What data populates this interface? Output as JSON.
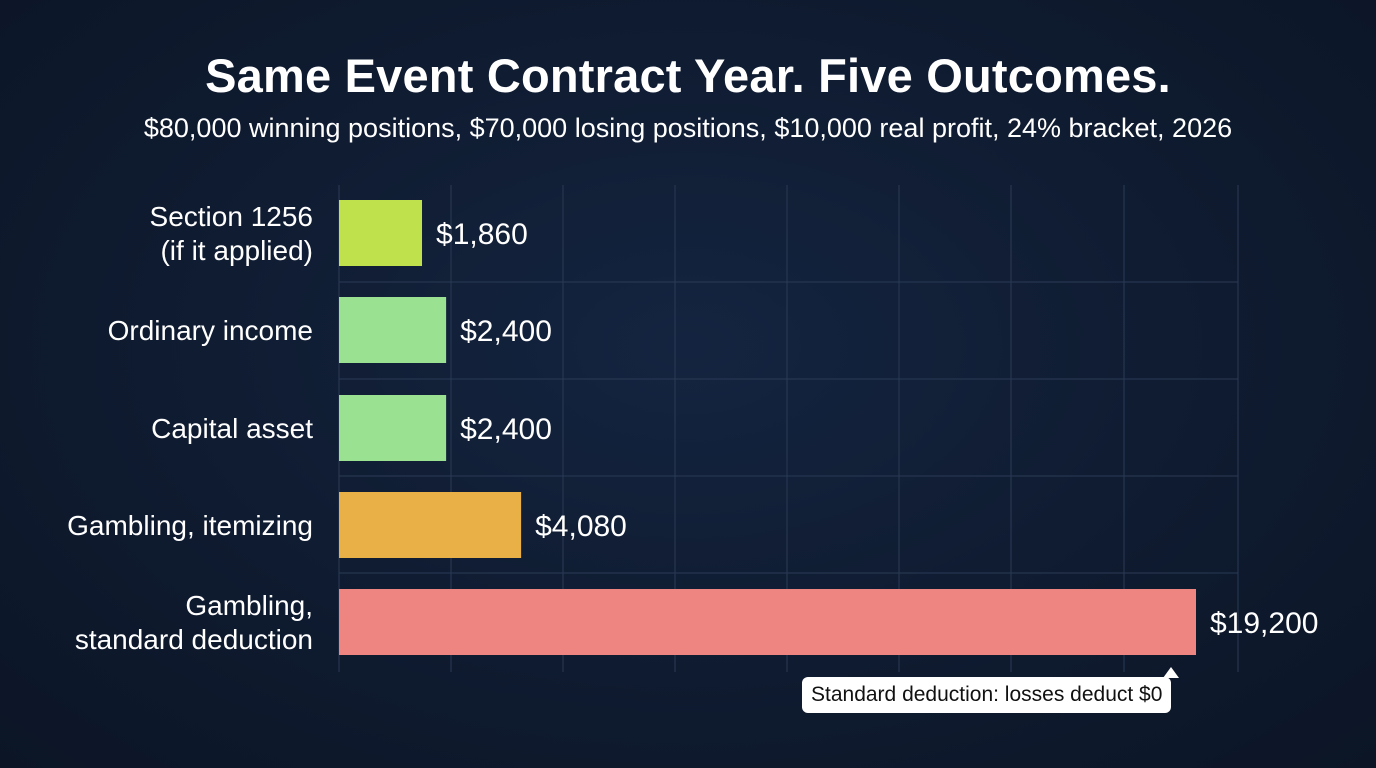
{
  "chart_data": {
    "type": "bar",
    "orientation": "horizontal",
    "title": "Same Event Contract Year. Five Outcomes.",
    "subtitle": "$80,000 winning positions, $70,000 losing positions, $10,000 real profit, 24% bracket, 2026",
    "categories": [
      [
        "Section 1256",
        "(if it applied)"
      ],
      [
        "Ordinary income"
      ],
      [
        "Capital asset"
      ],
      [
        "Gambling, itemizing"
      ],
      [
        "Gambling,",
        "standard deduction"
      ]
    ],
    "values": [
      1860,
      2400,
      2400,
      4080,
      19200
    ],
    "value_labels": [
      "$1,860",
      "$2,400",
      "$2,400",
      "$4,080",
      "$19,200"
    ],
    "colors": [
      "#bfe24c",
      "#9ae192",
      "#9ae192",
      "#e8b046",
      "#ee8580"
    ],
    "xlim": [
      0,
      20000
    ],
    "grid": true,
    "annotation": {
      "text": "Standard deduction: losses deduct $0",
      "target_category_index": 4
    }
  }
}
